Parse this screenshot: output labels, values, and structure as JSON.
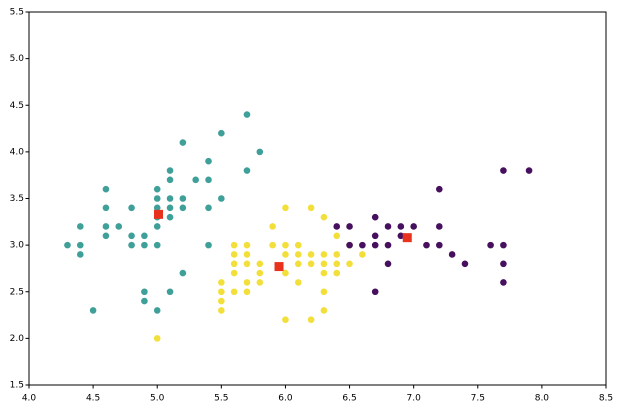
{
  "chart_data": {
    "type": "scatter",
    "xlim": [
      4.0,
      8.5
    ],
    "xticks": [
      {
        "value": 4,
        "label": "4.0"
      },
      4.5,
      {
        "value": 5,
        "label": "5.0"
      },
      5.5,
      {
        "value": 6,
        "label": "6.0"
      },
      6.5,
      {
        "value": 7,
        "label": "7.0"
      },
      7.5,
      {
        "value": 8,
        "label": "8.0"
      },
      8.5
    ],
    "ylim": [
      1.5,
      5.5
    ],
    "yticks": [
      1.5,
      {
        "value": 2,
        "label": "2.0"
      },
      2.5,
      {
        "value": 3,
        "label": "3.0"
      },
      3.5,
      {
        "value": 4,
        "label": "4.0"
      },
      4.5,
      {
        "value": 5,
        "label": "5.0"
      },
      5.5
    ],
    "series": [
      {
        "color": "#3f9f99",
        "marker": "circle",
        "x": [
          4.3,
          4.4,
          4.4,
          4.4,
          4.5,
          4.6,
          4.6,
          4.6,
          4.6,
          4.7,
          4.8,
          4.8,
          4.8,
          4.9,
          4.9,
          4.9,
          4.9,
          5.0,
          5.0,
          5.0,
          5.0,
          5.0,
          5.0,
          5.0,
          5.1,
          5.1,
          5.1,
          5.1,
          5.1,
          5.1,
          5.2,
          5.2,
          5.2,
          5.2,
          5.3,
          5.4,
          5.4,
          5.4,
          5.4,
          5.5,
          5.5,
          5.7,
          5.7,
          5.8
        ],
        "values": [
          3.0,
          3.2,
          3.0,
          2.9,
          2.3,
          3.6,
          3.4,
          3.2,
          3.1,
          3.2,
          3.4,
          3.1,
          3.0,
          3.1,
          3.0,
          2.5,
          2.4,
          3.6,
          3.5,
          3.4,
          3.3,
          3.2,
          3.0,
          2.3,
          3.8,
          3.7,
          3.5,
          3.4,
          3.3,
          2.5,
          4.1,
          3.5,
          3.4,
          2.7,
          3.7,
          3.9,
          3.7,
          3.4,
          3.0,
          4.2,
          3.5,
          4.4,
          3.8,
          4.0
        ]
      },
      {
        "color": "#f2df3a",
        "marker": "circle",
        "x": [
          5.0,
          5.5,
          5.5,
          5.5,
          5.5,
          5.6,
          5.6,
          5.6,
          5.6,
          5.6,
          5.7,
          5.7,
          5.7,
          5.7,
          5.7,
          5.8,
          5.8,
          5.8,
          5.9,
          5.9,
          6.0,
          6.0,
          6.0,
          6.0,
          6.0,
          6.1,
          6.1,
          6.1,
          6.1,
          6.2,
          6.2,
          6.2,
          6.2,
          6.3,
          6.3,
          6.3,
          6.3,
          6.3,
          6.3,
          6.4,
          6.4,
          6.4,
          6.4,
          6.5,
          6.5,
          6.6
        ],
        "values": [
          2.0,
          2.3,
          2.4,
          2.5,
          2.6,
          2.5,
          2.7,
          2.8,
          2.9,
          3.0,
          2.5,
          2.6,
          2.8,
          2.9,
          3.0,
          2.6,
          2.7,
          2.8,
          3.0,
          3.2,
          2.2,
          2.7,
          2.9,
          3.0,
          3.4,
          2.6,
          2.8,
          2.9,
          3.0,
          2.2,
          2.8,
          2.9,
          3.4,
          2.3,
          2.5,
          2.7,
          2.8,
          2.9,
          3.3,
          2.7,
          2.8,
          2.9,
          3.1,
          2.8,
          3.0,
          2.9
        ]
      },
      {
        "color": "#46105f",
        "marker": "circle",
        "x": [
          6.4,
          6.5,
          6.5,
          6.6,
          6.7,
          6.7,
          6.7,
          6.7,
          6.8,
          6.8,
          6.8,
          6.9,
          6.9,
          7.0,
          7.1,
          7.2,
          7.2,
          7.2,
          7.3,
          7.4,
          7.6,
          7.7,
          7.7,
          7.7,
          7.7,
          7.9
        ],
        "values": [
          3.2,
          3.2,
          3.0,
          3.0,
          3.3,
          3.1,
          3.0,
          2.5,
          3.2,
          3.0,
          2.8,
          3.1,
          3.2,
          3.2,
          3.0,
          3.6,
          3.2,
          3.0,
          2.9,
          2.8,
          3.0,
          3.8,
          3.0,
          2.8,
          2.6,
          3.8
        ]
      },
      {
        "color": "#e8321e",
        "marker": "square",
        "x": [
          5.01,
          5.95,
          6.95
        ],
        "values": [
          3.33,
          2.77,
          3.08
        ]
      }
    ]
  }
}
